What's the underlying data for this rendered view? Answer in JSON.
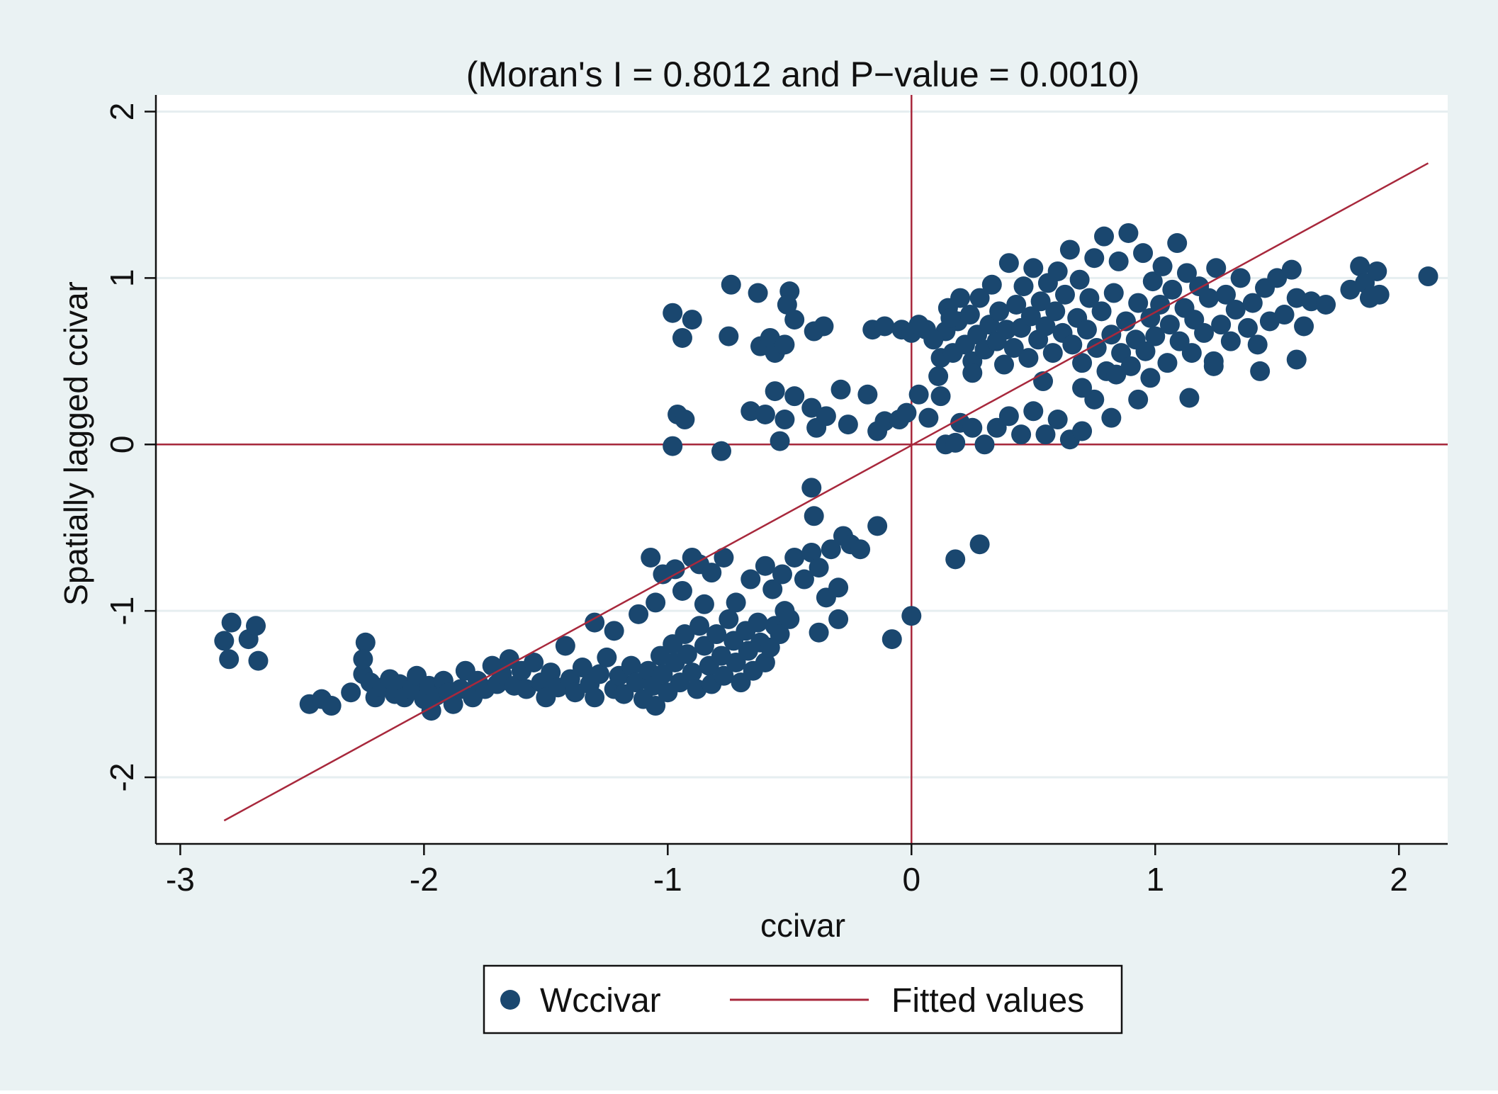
{
  "colors": {
    "outer_background": "#eaf2f3",
    "plot_background": "#ffffff",
    "grid": "#e6eef0",
    "point": "#1a476f",
    "fit_line": "#a8283c",
    "axis": "#111111"
  },
  "chart_data": {
    "type": "scatter",
    "title": "(Moran's I = 0.8012 and P−value = 0.0010)",
    "xlabel": "ccivar",
    "ylabel": "Spatially lagged ccivar",
    "xlim": [
      -3.1,
      2.2
    ],
    "ylim": [
      -2.4,
      2.1
    ],
    "xticks": [
      -3,
      -2,
      -1,
      0,
      1,
      2
    ],
    "xtick_labels": [
      "-3",
      "-2",
      "-1",
      "0",
      "1",
      "2"
    ],
    "yticks": [
      -2,
      -1,
      0,
      1,
      2
    ],
    "ytick_labels": [
      "-2",
      "-1",
      "0",
      "1",
      "2"
    ],
    "grid": true,
    "reference_lines": {
      "x": 0,
      "y": 0
    },
    "legend_position": "bottom-center",
    "series": [
      {
        "name": "Wccivar",
        "kind": "scatter",
        "points": [
          [
            -2.82,
            -1.18
          ],
          [
            -2.79,
            -1.07
          ],
          [
            -2.8,
            -1.29
          ],
          [
            -2.72,
            -1.17
          ],
          [
            -2.69,
            -1.09
          ],
          [
            -2.68,
            -1.3
          ],
          [
            -2.47,
            -1.56
          ],
          [
            -2.42,
            -1.53
          ],
          [
            -2.38,
            -1.57
          ],
          [
            -2.3,
            -1.49
          ],
          [
            -2.25,
            -1.38
          ],
          [
            -2.24,
            -1.19
          ],
          [
            -2.25,
            -1.29
          ],
          [
            -2.22,
            -1.43
          ],
          [
            -2.2,
            -1.52
          ],
          [
            -2.17,
            -1.46
          ],
          [
            -2.14,
            -1.41
          ],
          [
            -2.12,
            -1.5
          ],
          [
            -2.1,
            -1.44
          ],
          [
            -2.08,
            -1.52
          ],
          [
            -2.05,
            -1.47
          ],
          [
            -2.03,
            -1.39
          ],
          [
            -2.0,
            -1.53
          ],
          [
            -1.98,
            -1.45
          ],
          [
            -1.97,
            -1.6
          ],
          [
            -1.95,
            -1.51
          ],
          [
            -1.92,
            -1.42
          ],
          [
            -1.9,
            -1.49
          ],
          [
            -1.88,
            -1.56
          ],
          [
            -1.85,
            -1.47
          ],
          [
            -1.83,
            -1.36
          ],
          [
            -1.8,
            -1.52
          ],
          [
            -1.78,
            -1.42
          ],
          [
            -1.75,
            -1.47
          ],
          [
            -1.72,
            -1.33
          ],
          [
            -1.7,
            -1.44
          ],
          [
            -1.68,
            -1.38
          ],
          [
            -1.65,
            -1.29
          ],
          [
            -1.63,
            -1.45
          ],
          [
            -1.6,
            -1.36
          ],
          [
            -1.58,
            -1.47
          ],
          [
            -1.55,
            -1.31
          ],
          [
            -1.52,
            -1.43
          ],
          [
            -1.5,
            -1.52
          ],
          [
            -1.48,
            -1.37
          ],
          [
            -1.45,
            -1.46
          ],
          [
            -1.42,
            -1.21
          ],
          [
            -1.4,
            -1.41
          ],
          [
            -1.38,
            -1.49
          ],
          [
            -1.35,
            -1.34
          ],
          [
            -1.32,
            -1.44
          ],
          [
            -1.3,
            -1.52
          ],
          [
            -1.28,
            -1.38
          ],
          [
            -1.25,
            -1.28
          ],
          [
            -1.22,
            -1.47
          ],
          [
            -1.2,
            -1.39
          ],
          [
            -1.18,
            -1.5
          ],
          [
            -1.15,
            -1.33
          ],
          [
            -1.13,
            -1.43
          ],
          [
            -1.1,
            -1.53
          ],
          [
            -1.08,
            -1.36
          ],
          [
            -1.06,
            -1.45
          ],
          [
            -1.05,
            -1.57
          ],
          [
            -1.03,
            -1.27
          ],
          [
            -1.02,
            -1.38
          ],
          [
            -1.0,
            -1.49
          ],
          [
            -0.98,
            -1.2
          ],
          [
            -0.97,
            -1.31
          ],
          [
            -0.95,
            -1.43
          ],
          [
            -0.93,
            -1.14
          ],
          [
            -0.92,
            -1.26
          ],
          [
            -0.9,
            -1.37
          ],
          [
            -0.88,
            -1.47
          ],
          [
            -0.87,
            -1.09
          ],
          [
            -0.85,
            -1.21
          ],
          [
            -0.83,
            -1.33
          ],
          [
            -0.82,
            -1.44
          ],
          [
            -0.8,
            -1.14
          ],
          [
            -0.78,
            -1.27
          ],
          [
            -0.77,
            -1.39
          ],
          [
            -0.75,
            -1.05
          ],
          [
            -0.73,
            -1.18
          ],
          [
            -0.72,
            -1.31
          ],
          [
            -0.7,
            -1.43
          ],
          [
            -0.68,
            -1.12
          ],
          [
            -0.67,
            -1.24
          ],
          [
            -0.65,
            -1.36
          ],
          [
            -0.63,
            -1.07
          ],
          [
            -0.62,
            -1.19
          ],
          [
            -0.6,
            -1.31
          ],
          [
            -0.58,
            -1.22
          ],
          [
            -0.56,
            -1.09
          ],
          [
            -0.54,
            -1.14
          ],
          [
            -0.52,
            -1.0
          ],
          [
            -0.5,
            -1.05
          ],
          [
            -1.3,
            -1.07
          ],
          [
            -1.22,
            -1.12
          ],
          [
            -1.12,
            -1.02
          ],
          [
            -1.05,
            -0.95
          ],
          [
            -1.07,
            -0.68
          ],
          [
            -1.02,
            -0.78
          ],
          [
            -0.97,
            -0.75
          ],
          [
            -0.94,
            -0.88
          ],
          [
            -0.9,
            -0.68
          ],
          [
            -0.87,
            -0.72
          ],
          [
            -0.85,
            -0.96
          ],
          [
            -0.82,
            -0.77
          ],
          [
            -0.77,
            -0.68
          ],
          [
            -0.72,
            -0.95
          ],
          [
            -0.66,
            -0.81
          ],
          [
            -0.6,
            -0.73
          ],
          [
            -0.57,
            -0.87
          ],
          [
            -0.53,
            -0.78
          ],
          [
            -0.48,
            -0.68
          ],
          [
            -0.44,
            -0.81
          ],
          [
            -0.41,
            -0.65
          ],
          [
            -0.38,
            -0.74
          ],
          [
            -0.35,
            -0.92
          ],
          [
            -0.33,
            -0.63
          ],
          [
            -0.3,
            -0.86
          ],
          [
            -0.28,
            -0.55
          ],
          [
            -0.25,
            -0.6
          ],
          [
            -0.21,
            -0.63
          ],
          [
            -0.14,
            -0.49
          ],
          [
            -0.4,
            -0.43
          ],
          [
            -0.41,
            -0.26
          ],
          [
            -0.38,
            -1.13
          ],
          [
            -0.3,
            -1.05
          ],
          [
            -0.08,
            -1.17
          ],
          [
            0.0,
            -1.03
          ],
          [
            0.18,
            -0.69
          ],
          [
            0.28,
            -0.6
          ],
          [
            -0.98,
            0.79
          ],
          [
            -0.9,
            0.75
          ],
          [
            -0.94,
            0.64
          ],
          [
            -0.74,
            0.96
          ],
          [
            -0.75,
            0.65
          ],
          [
            -0.63,
            0.91
          ],
          [
            -0.62,
            0.59
          ],
          [
            -0.58,
            0.64
          ],
          [
            -0.56,
            0.55
          ],
          [
            -0.52,
            0.6
          ],
          [
            -0.5,
            0.92
          ],
          [
            -0.51,
            0.84
          ],
          [
            -0.48,
            0.75
          ],
          [
            -0.4,
            0.68
          ],
          [
            -0.36,
            0.71
          ],
          [
            -0.16,
            0.69
          ],
          [
            -0.11,
            0.71
          ],
          [
            -0.04,
            0.69
          ],
          [
            0.0,
            0.67
          ],
          [
            -0.96,
            0.18
          ],
          [
            -0.93,
            0.15
          ],
          [
            -0.98,
            -0.01
          ],
          [
            -0.78,
            -0.04
          ],
          [
            -0.66,
            0.2
          ],
          [
            -0.6,
            0.18
          ],
          [
            -0.56,
            0.32
          ],
          [
            -0.52,
            0.15
          ],
          [
            -0.48,
            0.29
          ],
          [
            -0.54,
            0.02
          ],
          [
            -0.41,
            0.22
          ],
          [
            -0.39,
            0.1
          ],
          [
            -0.35,
            0.17
          ],
          [
            -0.29,
            0.33
          ],
          [
            -0.26,
            0.12
          ],
          [
            -0.18,
            0.3
          ],
          [
            -0.14,
            0.08
          ],
          [
            -0.11,
            0.14
          ],
          [
            -0.05,
            0.15
          ],
          [
            -0.02,
            0.19
          ],
          [
            0.03,
            0.3
          ],
          [
            0.07,
            0.16
          ],
          [
            0.12,
            0.29
          ],
          [
            0.14,
            0.0
          ],
          [
            0.18,
            0.01
          ],
          [
            0.2,
            0.13
          ],
          [
            0.25,
            0.1
          ],
          [
            0.3,
            0.0
          ],
          [
            0.35,
            0.1
          ],
          [
            0.4,
            0.17
          ],
          [
            0.45,
            0.06
          ],
          [
            0.5,
            0.2
          ],
          [
            0.55,
            0.06
          ],
          [
            0.6,
            0.15
          ],
          [
            0.65,
            0.03
          ],
          [
            0.7,
            0.08
          ],
          [
            0.75,
            0.27
          ],
          [
            0.82,
            0.16
          ],
          [
            0.93,
            0.27
          ],
          [
            0.12,
            0.52
          ],
          [
            0.14,
            0.68
          ],
          [
            0.15,
            0.82
          ],
          [
            0.17,
            0.55
          ],
          [
            0.19,
            0.74
          ],
          [
            0.2,
            0.88
          ],
          [
            0.22,
            0.6
          ],
          [
            0.24,
            0.78
          ],
          [
            0.25,
            0.5
          ],
          [
            0.27,
            0.66
          ],
          [
            0.28,
            0.88
          ],
          [
            0.3,
            0.57
          ],
          [
            0.32,
            0.72
          ],
          [
            0.33,
            0.96
          ],
          [
            0.35,
            0.62
          ],
          [
            0.36,
            0.8
          ],
          [
            0.38,
            0.48
          ],
          [
            0.39,
            0.69
          ],
          [
            0.4,
            1.09
          ],
          [
            0.42,
            0.58
          ],
          [
            0.43,
            0.84
          ],
          [
            0.45,
            0.7
          ],
          [
            0.46,
            0.95
          ],
          [
            0.48,
            0.52
          ],
          [
            0.49,
            0.77
          ],
          [
            0.5,
            1.06
          ],
          [
            0.52,
            0.63
          ],
          [
            0.53,
            0.86
          ],
          [
            0.55,
            0.71
          ],
          [
            0.56,
            0.97
          ],
          [
            0.58,
            0.55
          ],
          [
            0.59,
            0.8
          ],
          [
            0.6,
            1.04
          ],
          [
            0.62,
            0.67
          ],
          [
            0.63,
            0.9
          ],
          [
            0.65,
            1.17
          ],
          [
            0.66,
            0.6
          ],
          [
            0.68,
            0.76
          ],
          [
            0.69,
            0.99
          ],
          [
            0.7,
            0.49
          ],
          [
            0.72,
            0.69
          ],
          [
            0.73,
            0.88
          ],
          [
            0.75,
            1.12
          ],
          [
            0.76,
            0.58
          ],
          [
            0.78,
            0.8
          ],
          [
            0.79,
            1.25
          ],
          [
            0.8,
            0.44
          ],
          [
            0.82,
            0.66
          ],
          [
            0.83,
            0.91
          ],
          [
            0.85,
            1.1
          ],
          [
            0.86,
            0.55
          ],
          [
            0.88,
            0.74
          ],
          [
            0.89,
            1.27
          ],
          [
            0.9,
            0.47
          ],
          [
            0.92,
            0.63
          ],
          [
            0.93,
            0.85
          ],
          [
            0.95,
            1.15
          ],
          [
            0.96,
            0.56
          ],
          [
            0.98,
            0.76
          ],
          [
            0.99,
            0.98
          ],
          [
            1.0,
            0.65
          ],
          [
            1.02,
            0.84
          ],
          [
            1.03,
            1.07
          ],
          [
            1.05,
            0.49
          ],
          [
            1.06,
            0.72
          ],
          [
            1.07,
            0.93
          ],
          [
            1.09,
            1.21
          ],
          [
            1.1,
            0.62
          ],
          [
            1.12,
            0.82
          ],
          [
            1.13,
            1.03
          ],
          [
            1.15,
            0.55
          ],
          [
            1.16,
            0.75
          ],
          [
            1.18,
            0.95
          ],
          [
            1.2,
            0.67
          ],
          [
            1.22,
            0.88
          ],
          [
            1.24,
            0.5
          ],
          [
            1.25,
            1.06
          ],
          [
            1.27,
            0.72
          ],
          [
            1.29,
            0.9
          ],
          [
            1.31,
            0.62
          ],
          [
            1.33,
            0.81
          ],
          [
            1.35,
            1.0
          ],
          [
            1.38,
            0.7
          ],
          [
            1.4,
            0.85
          ],
          [
            1.42,
            0.6
          ],
          [
            1.45,
            0.94
          ],
          [
            1.47,
            0.74
          ],
          [
            1.5,
            1.0
          ],
          [
            1.53,
            0.78
          ],
          [
            1.56,
            1.05
          ],
          [
            1.58,
            0.88
          ],
          [
            1.61,
            0.71
          ],
          [
            1.64,
            0.86
          ],
          [
            1.7,
            0.84
          ],
          [
            1.8,
            0.93
          ],
          [
            1.84,
            1.07
          ],
          [
            1.86,
            0.97
          ],
          [
            1.88,
            0.88
          ],
          [
            1.92,
            0.9
          ],
          [
            1.91,
            1.04
          ],
          [
            2.12,
            1.01
          ],
          [
            1.43,
            0.44
          ],
          [
            1.58,
            0.51
          ],
          [
            1.14,
            0.28
          ],
          [
            0.98,
            0.4
          ],
          [
            0.16,
            0.76
          ],
          [
            0.25,
            0.43
          ],
          [
            0.54,
            0.38
          ],
          [
            0.7,
            0.34
          ],
          [
            0.84,
            0.42
          ],
          [
            1.24,
            0.47
          ],
          [
            0.06,
            0.69
          ],
          [
            0.03,
            0.72
          ],
          [
            0.09,
            0.63
          ],
          [
            0.11,
            0.41
          ]
        ]
      },
      {
        "name": "Fitted values",
        "kind": "line",
        "points": [
          [
            -2.82,
            -2.26
          ],
          [
            2.12,
            1.69
          ]
        ]
      }
    ]
  }
}
